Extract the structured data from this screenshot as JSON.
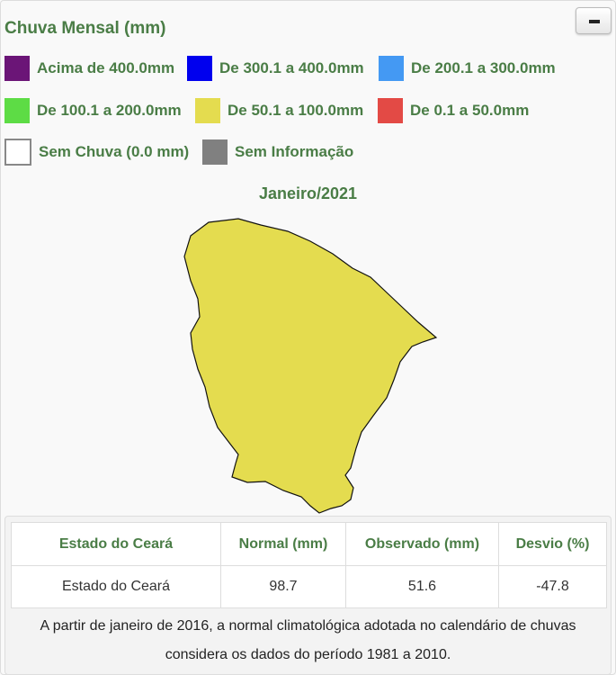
{
  "title": "Chuva Mensal (mm)",
  "collapse_button": "minus-icon",
  "legend": [
    {
      "label": "Acima de 400.0mm",
      "color": "#6b1577"
    },
    {
      "label": "De 300.1 a 400.0mm",
      "color": "#0000ee"
    },
    {
      "label": "De 200.1 a 300.0mm",
      "color": "#4499f3"
    },
    {
      "label": "De 100.1 a 200.0mm",
      "color": "#5ddc45"
    },
    {
      "label": "De 50.1 a 100.0mm",
      "color": "#e4dc4f"
    },
    {
      "label": "De 0.1 a 50.0mm",
      "color": "#e34a45"
    },
    {
      "label": "Sem Chuva (0.0 mm)",
      "color": "#ffffff"
    },
    {
      "label": "Sem Informação",
      "color": "#808080"
    }
  ],
  "map": {
    "period": "Janeiro/2021",
    "region": "Ceará",
    "fill": "#e4dc4f"
  },
  "table": {
    "headers": [
      "Estado do Ceará",
      "Normal (mm)",
      "Observado (mm)",
      "Desvio (%)"
    ],
    "rows": [
      [
        "Estado do Ceará",
        "98.7",
        "51.6",
        "-47.8"
      ]
    ]
  },
  "note": "A partir de janeiro de 2016, a normal climatológica adotada no calendário de chuvas considera os dados do período 1981 a 2010."
}
